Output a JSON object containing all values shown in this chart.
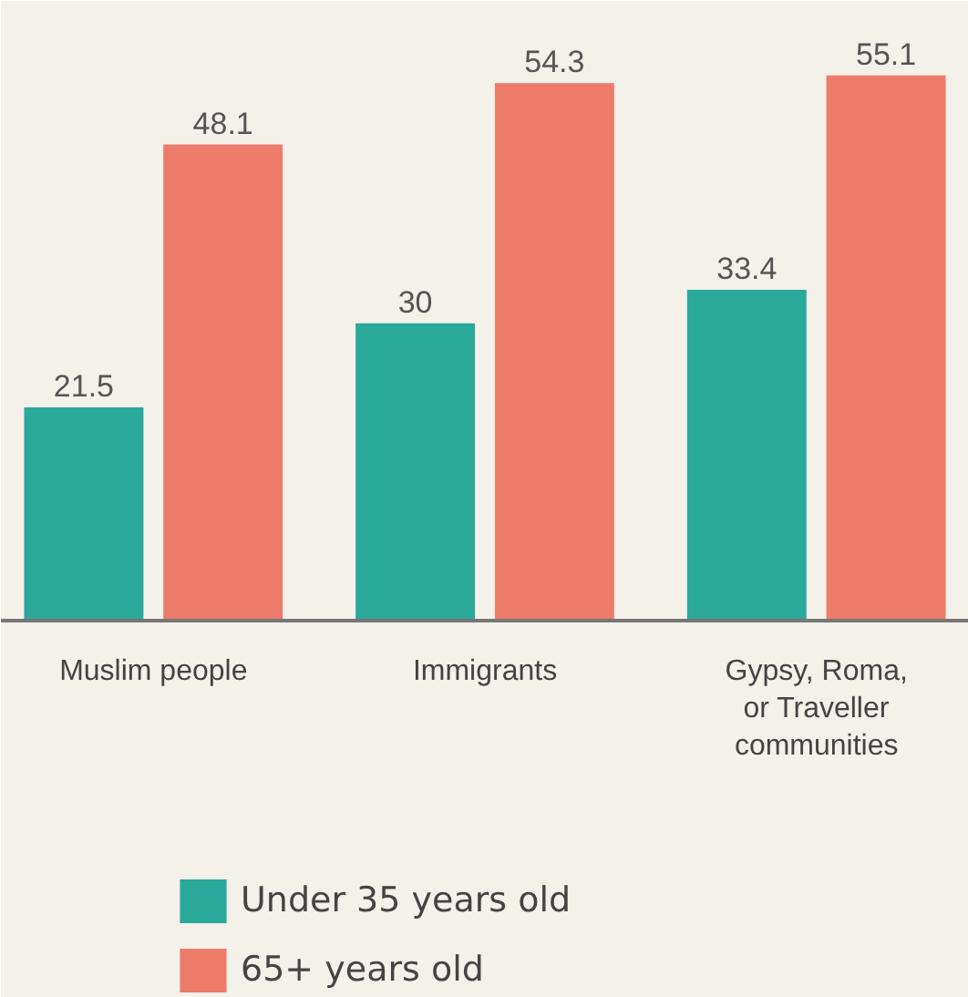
{
  "chart_data": {
    "type": "bar",
    "categories": [
      "Muslim people",
      "Immigrants",
      "Gypsy, Roma, or Traveller communities"
    ],
    "series": [
      {
        "name": "Under 35 years old",
        "color": "#2aa99b",
        "values": [
          21.5,
          30,
          33.4
        ]
      },
      {
        "name": "65+ years old",
        "color": "#ec7c69",
        "values": [
          48.1,
          54.3,
          55.1
        ]
      }
    ],
    "data_labels": true,
    "legend": "bottom",
    "grid": false
  }
}
